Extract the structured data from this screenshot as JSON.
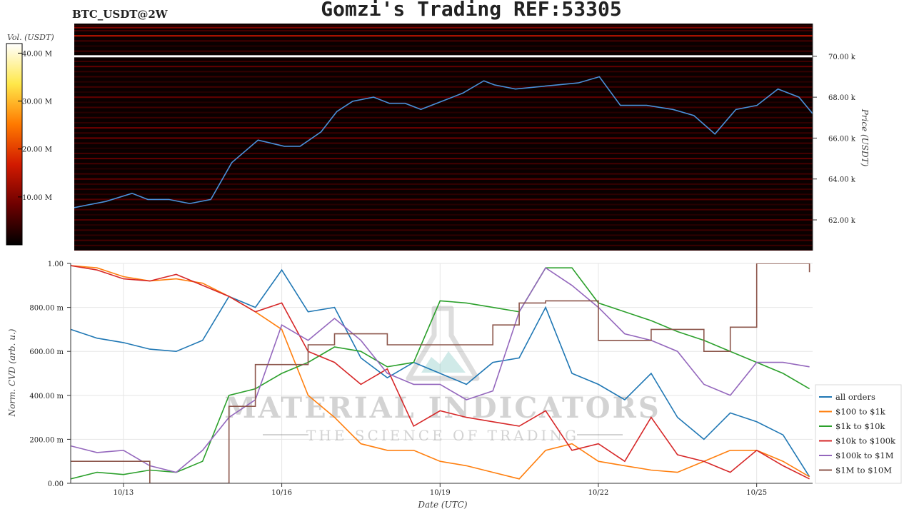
{
  "header": {
    "symbol": "BTC_USDT@2W",
    "title": "Gomzi's Trading REF:53305"
  },
  "colorbar": {
    "label": "Vol. (USDT)",
    "ticks": [
      "10.00 M",
      "20.00 M",
      "30.00 M",
      "40.00 M"
    ],
    "tick_values": [
      10,
      20,
      30,
      40
    ],
    "max": 42,
    "colors": [
      "#000000",
      "#6e0000",
      "#d21a00",
      "#ff7a00",
      "#ffe84a",
      "#ffffff"
    ]
  },
  "watermark": {
    "line1": "MATERIAL INDICATORS",
    "line2": "THE SCIENCE OF TRADING"
  },
  "chart_data": [
    {
      "type": "heatmap",
      "title": "",
      "ylabel": "Price (USDT)",
      "ylim": [
        60500,
        71600
      ],
      "yticks": [
        62000,
        64000,
        66000,
        68000,
        70000
      ],
      "ytick_labels": [
        "62.00 k",
        "64.00 k",
        "66.00 k",
        "68.00 k",
        "70.00 k"
      ],
      "xlim": [
        0,
        14.06
      ],
      "price_line_color": "#4a90d9",
      "price_series": {
        "name": "price",
        "x": [
          0,
          0.6,
          1.1,
          1.4,
          1.8,
          2.2,
          2.6,
          3.0,
          3.5,
          4.0,
          4.3,
          4.7,
          5.0,
          5.3,
          5.7,
          6.0,
          6.3,
          6.6,
          7.0,
          7.4,
          7.8,
          8.0,
          8.4,
          8.8,
          9.2,
          9.6,
          10.0,
          10.4,
          10.9,
          11.4,
          11.8,
          12.2,
          12.6,
          13.0,
          13.4,
          13.8,
          14.06
        ],
        "y": [
          62600,
          62900,
          63300,
          63000,
          63000,
          62800,
          63000,
          64800,
          65900,
          65600,
          65600,
          66300,
          67300,
          67800,
          68000,
          67700,
          67700,
          67400,
          67800,
          68200,
          68800,
          68600,
          68400,
          68500,
          68600,
          68700,
          69000,
          67600,
          67600,
          67400,
          67100,
          66200,
          67400,
          67600,
          68400,
          68000,
          67200
        ]
      },
      "walls": [
        {
          "price": 70000,
          "intensity": 1.0
        },
        {
          "price": 71000,
          "intensity": 0.55
        },
        {
          "price": 71400,
          "intensity": 0.4
        },
        {
          "price": 69500,
          "intensity": 0.3
        },
        {
          "price": 68000,
          "intensity": 0.3
        },
        {
          "price": 66500,
          "intensity": 0.35
        },
        {
          "price": 66000,
          "intensity": 0.35
        },
        {
          "price": 65000,
          "intensity": 0.3
        },
        {
          "price": 64000,
          "intensity": 0.28
        },
        {
          "price": 63000,
          "intensity": 0.25
        },
        {
          "price": 62000,
          "intensity": 0.25
        },
        {
          "price": 61000,
          "intensity": 0.2
        }
      ]
    },
    {
      "type": "line",
      "title": "",
      "xlabel": "Date (UTC)",
      "ylabel": "Norm. CVD (arb. u.)",
      "ylim": [
        0,
        1
      ],
      "xlim": [
        0,
        14.06
      ],
      "xticks": [
        1,
        4,
        7,
        10,
        13
      ],
      "xtick_labels": [
        "10/13",
        "10/16",
        "10/19",
        "10/22",
        "10/25"
      ],
      "yticks": [
        0,
        0.2,
        0.4,
        0.6,
        0.8,
        1.0
      ],
      "ytick_labels": [
        "0.00",
        "200.00 m",
        "400.00 m",
        "600.00 m",
        "800.00 m",
        "1.00"
      ],
      "grid": true,
      "legend_position": "right",
      "x": [
        0,
        0.5,
        1,
        1.5,
        2,
        2.5,
        3,
        3.5,
        4,
        4.5,
        5,
        5.5,
        6,
        6.5,
        7,
        7.5,
        8,
        8.5,
        9,
        9.5,
        10,
        10.5,
        11,
        11.5,
        12,
        12.5,
        13,
        13.5,
        14
      ],
      "series": [
        {
          "name": "all orders",
          "color": "#1f77b4",
          "values": [
            0.7,
            0.66,
            0.64,
            0.61,
            0.6,
            0.65,
            0.85,
            0.8,
            0.97,
            0.78,
            0.8,
            0.57,
            0.48,
            0.55,
            0.5,
            0.45,
            0.55,
            0.57,
            0.8,
            0.5,
            0.45,
            0.38,
            0.5,
            0.3,
            0.2,
            0.32,
            0.28,
            0.22,
            0.03
          ]
        },
        {
          "name": "$100 to $1k",
          "color": "#ff7f0e",
          "values": [
            0.99,
            0.98,
            0.94,
            0.92,
            0.93,
            0.91,
            0.85,
            0.78,
            0.7,
            0.4,
            0.3,
            0.18,
            0.15,
            0.15,
            0.1,
            0.08,
            0.05,
            0.02,
            0.15,
            0.18,
            0.1,
            0.08,
            0.06,
            0.05,
            0.1,
            0.15,
            0.15,
            0.1,
            0.03
          ]
        },
        {
          "name": "$1k to $10k",
          "color": "#2ca02c",
          "values": [
            0.02,
            0.05,
            0.04,
            0.06,
            0.05,
            0.1,
            0.4,
            0.43,
            0.5,
            0.55,
            0.62,
            0.6,
            0.53,
            0.55,
            0.83,
            0.82,
            0.8,
            0.78,
            0.98,
            0.98,
            0.82,
            0.78,
            0.74,
            0.69,
            0.65,
            0.6,
            0.55,
            0.5,
            0.43
          ]
        },
        {
          "name": "$10k to $100k",
          "color": "#d62728",
          "values": [
            0.99,
            0.97,
            0.93,
            0.92,
            0.95,
            0.9,
            0.85,
            0.78,
            0.82,
            0.6,
            0.55,
            0.45,
            0.52,
            0.26,
            0.33,
            0.3,
            0.28,
            0.26,
            0.33,
            0.15,
            0.18,
            0.1,
            0.3,
            0.13,
            0.1,
            0.05,
            0.15,
            0.08,
            0.02
          ]
        },
        {
          "name": "$100k to $1M",
          "color": "#9467bd",
          "values": [
            0.17,
            0.14,
            0.15,
            0.08,
            0.05,
            0.15,
            0.3,
            0.38,
            0.72,
            0.65,
            0.75,
            0.65,
            0.5,
            0.45,
            0.45,
            0.38,
            0.42,
            0.78,
            0.98,
            0.9,
            0.8,
            0.68,
            0.65,
            0.6,
            0.45,
            0.4,
            0.55,
            0.55,
            0.53
          ]
        },
        {
          "name": "$1M to $10M",
          "color": "#8c564b",
          "values": [
            0.1,
            0.1,
            0.1,
            0.0,
            0.0,
            0.0,
            0.35,
            0.54,
            0.54,
            0.63,
            0.68,
            0.68,
            0.63,
            0.63,
            0.63,
            0.63,
            0.72,
            0.82,
            0.83,
            0.83,
            0.65,
            0.65,
            0.7,
            0.7,
            0.6,
            0.71,
            1.0,
            1.0,
            0.96
          ]
        }
      ]
    }
  ]
}
